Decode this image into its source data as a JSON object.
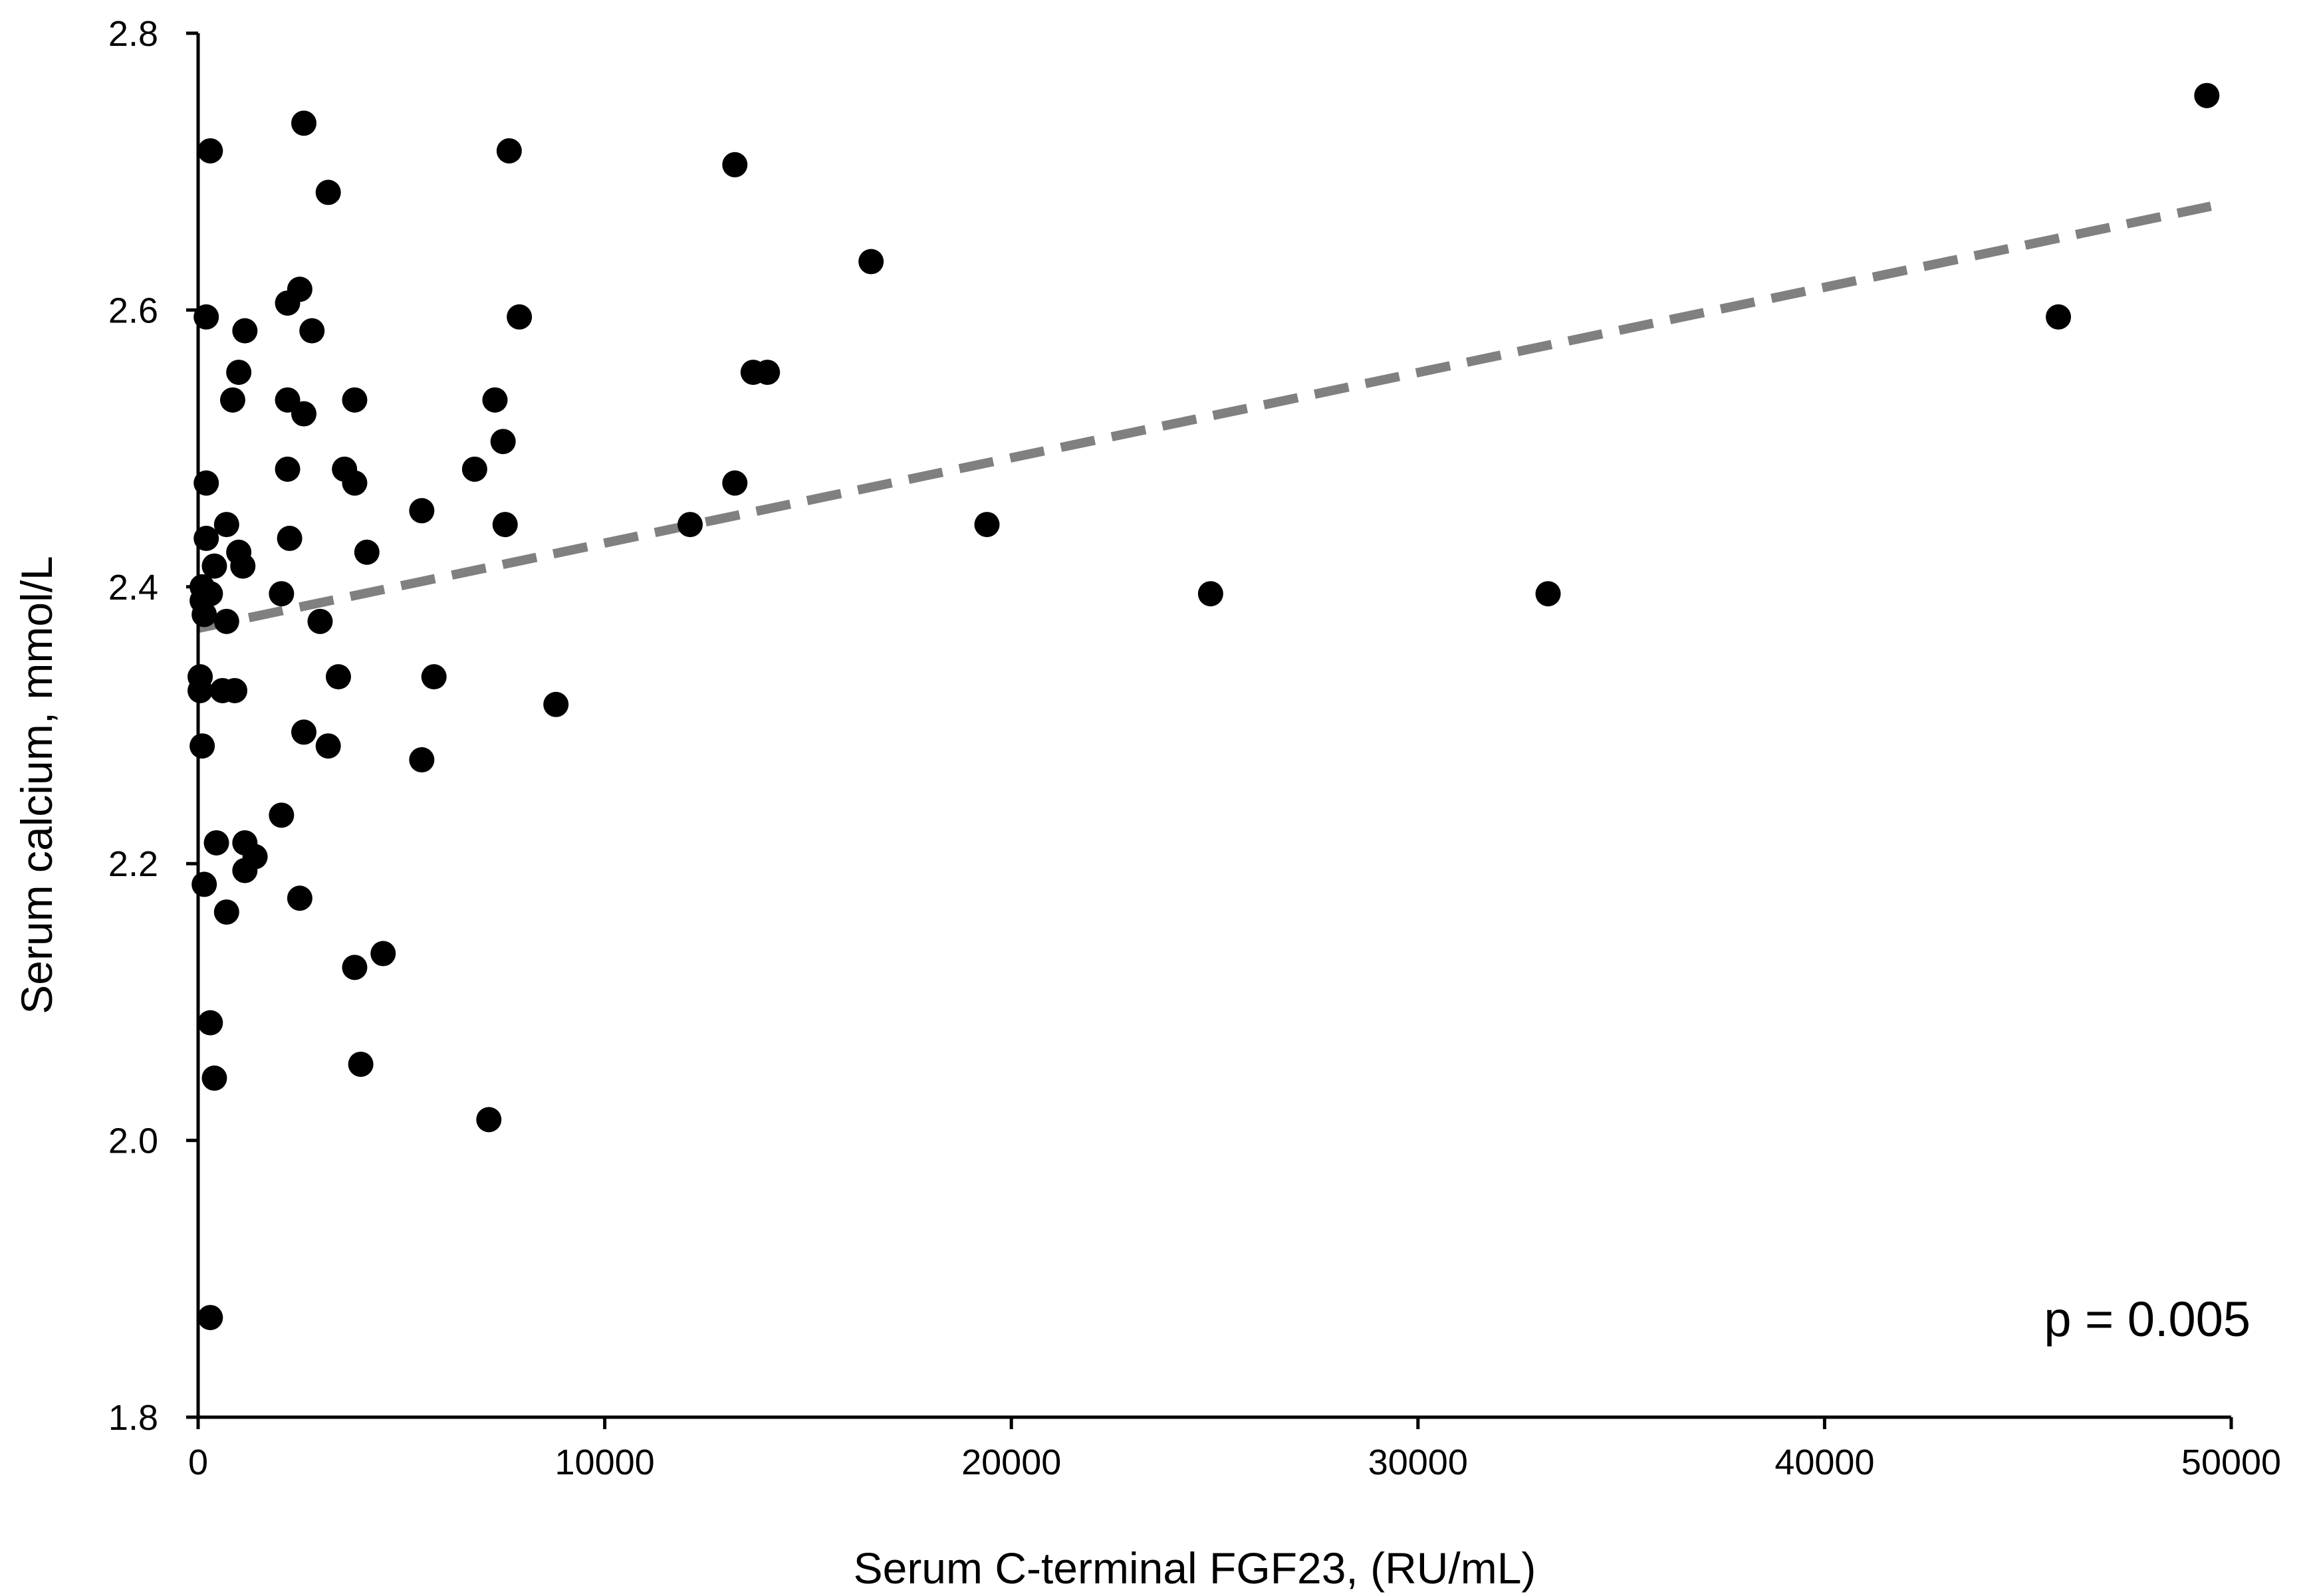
{
  "chart_data": {
    "type": "scatter",
    "xlabel": "Serum C-terminal  FGF23, (RU/mL)",
    "ylabel": "Serum calcium,  mmol/L",
    "xlim": [
      0,
      50000
    ],
    "ylim": [
      1.8,
      2.8
    ],
    "xticks": [
      0,
      10000,
      20000,
      30000,
      40000,
      50000
    ],
    "yticks": [
      1.8,
      2.0,
      2.2,
      2.4,
      2.6,
      2.8
    ],
    "xtick_labels": [
      "0",
      "10000",
      "20000",
      "30000",
      "40000",
      "50000"
    ],
    "ytick_labels": [
      "1.8",
      "2.0",
      "2.2",
      "2.4",
      "2.6",
      "2.8"
    ],
    "grid": false,
    "legend": "none",
    "annotation": "p = 0.005",
    "marker_color": "#000000",
    "trendline": {
      "style": "dashed",
      "color": "#808080",
      "x": [
        0,
        49500
      ],
      "y": [
        2.37,
        2.675
      ]
    },
    "points": [
      {
        "x": 100,
        "y": 2.4
      },
      {
        "x": 100,
        "y": 2.39
      },
      {
        "x": 150,
        "y": 2.38
      },
      {
        "x": 50,
        "y": 2.335
      },
      {
        "x": 50,
        "y": 2.325
      },
      {
        "x": 100,
        "y": 2.285
      },
      {
        "x": 150,
        "y": 2.185
      },
      {
        "x": 200,
        "y": 2.595
      },
      {
        "x": 200,
        "y": 2.475
      },
      {
        "x": 200,
        "y": 2.435
      },
      {
        "x": 300,
        "y": 2.395
      },
      {
        "x": 300,
        "y": 2.715
      },
      {
        "x": 300,
        "y": 2.085
      },
      {
        "x": 400,
        "y": 2.045
      },
      {
        "x": 300,
        "y": 1.872
      },
      {
        "x": 400,
        "y": 2.415
      },
      {
        "x": 450,
        "y": 2.215
      },
      {
        "x": 600,
        "y": 2.325
      },
      {
        "x": 700,
        "y": 2.445
      },
      {
        "x": 700,
        "y": 2.375
      },
      {
        "x": 700,
        "y": 2.165
      },
      {
        "x": 900,
        "y": 2.325
      },
      {
        "x": 850,
        "y": 2.535
      },
      {
        "x": 1000,
        "y": 2.555
      },
      {
        "x": 1000,
        "y": 2.425
      },
      {
        "x": 1100,
        "y": 2.415
      },
      {
        "x": 1150,
        "y": 2.585
      },
      {
        "x": 1150,
        "y": 2.215
      },
      {
        "x": 1150,
        "y": 2.195
      },
      {
        "x": 1400,
        "y": 2.205
      },
      {
        "x": 2050,
        "y": 2.395
      },
      {
        "x": 2050,
        "y": 2.235
      },
      {
        "x": 2200,
        "y": 2.605
      },
      {
        "x": 2200,
        "y": 2.535
      },
      {
        "x": 2200,
        "y": 2.485
      },
      {
        "x": 2250,
        "y": 2.435
      },
      {
        "x": 2500,
        "y": 2.615
      },
      {
        "x": 2500,
        "y": 2.175
      },
      {
        "x": 2600,
        "y": 2.735
      },
      {
        "x": 2600,
        "y": 2.525
      },
      {
        "x": 2600,
        "y": 2.295
      },
      {
        "x": 2800,
        "y": 2.585
      },
      {
        "x": 3000,
        "y": 2.375
      },
      {
        "x": 3200,
        "y": 2.685
      },
      {
        "x": 3200,
        "y": 2.285
      },
      {
        "x": 3450,
        "y": 2.335
      },
      {
        "x": 3600,
        "y": 2.485
      },
      {
        "x": 3850,
        "y": 2.535
      },
      {
        "x": 3850,
        "y": 2.475
      },
      {
        "x": 3850,
        "y": 2.125
      },
      {
        "x": 4000,
        "y": 2.055
      },
      {
        "x": 4150,
        "y": 2.425
      },
      {
        "x": 4550,
        "y": 2.135
      },
      {
        "x": 5500,
        "y": 2.455
      },
      {
        "x": 5500,
        "y": 2.275
      },
      {
        "x": 5800,
        "y": 2.335
      },
      {
        "x": 6800,
        "y": 2.485
      },
      {
        "x": 7150,
        "y": 2.015
      },
      {
        "x": 7300,
        "y": 2.535
      },
      {
        "x": 7500,
        "y": 2.505
      },
      {
        "x": 7550,
        "y": 2.445
      },
      {
        "x": 7650,
        "y": 2.715
      },
      {
        "x": 7900,
        "y": 2.595
      },
      {
        "x": 8800,
        "y": 2.315
      },
      {
        "x": 12100,
        "y": 2.445
      },
      {
        "x": 13200,
        "y": 2.705
      },
      {
        "x": 13200,
        "y": 2.475
      },
      {
        "x": 13650,
        "y": 2.555
      },
      {
        "x": 14000,
        "y": 2.555
      },
      {
        "x": 16550,
        "y": 2.635
      },
      {
        "x": 19400,
        "y": 2.445
      },
      {
        "x": 24900,
        "y": 2.395
      },
      {
        "x": 33200,
        "y": 2.395
      },
      {
        "x": 45750,
        "y": 2.595
      },
      {
        "x": 49400,
        "y": 2.755
      }
    ]
  }
}
